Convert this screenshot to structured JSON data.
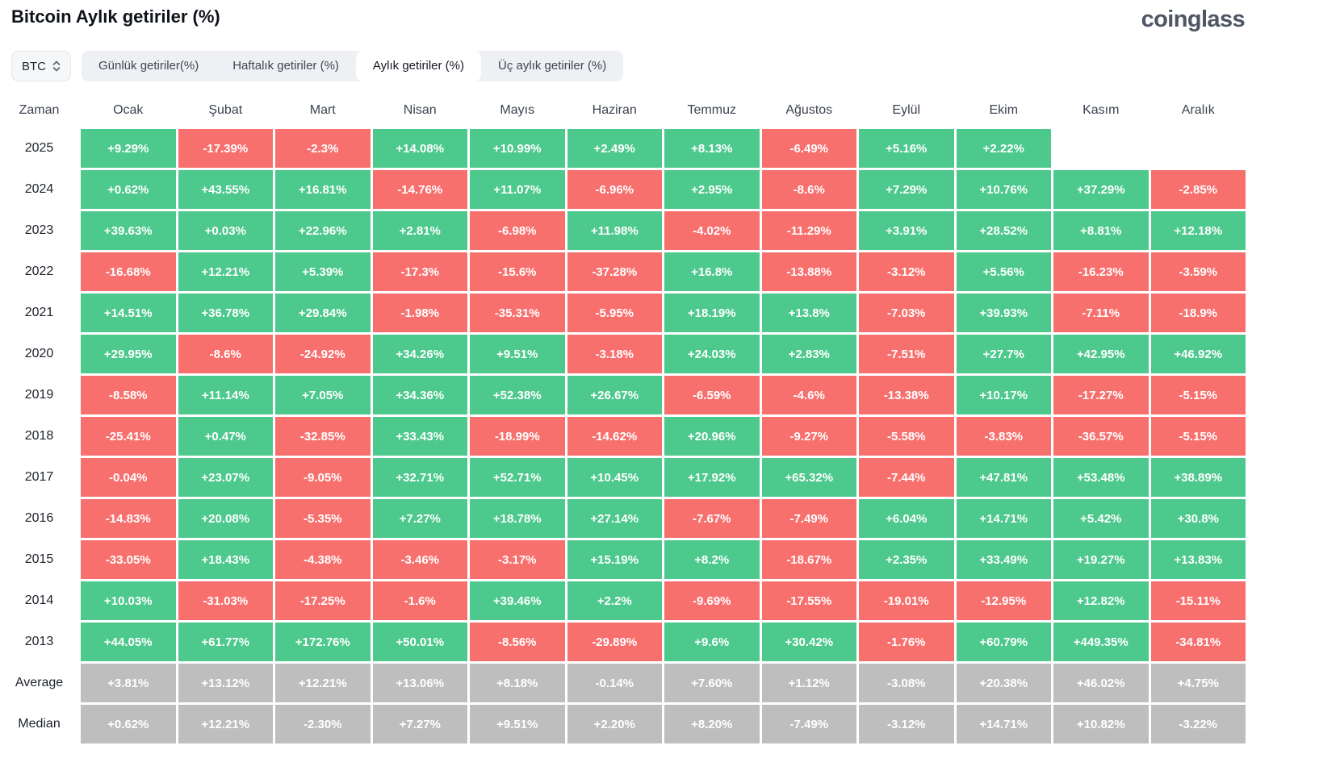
{
  "header": {
    "title": "Bitcoin Aylık getiriler (%)",
    "logo_text": "coinglass"
  },
  "toolbar": {
    "symbol_select": {
      "value": "BTC"
    },
    "tabs": [
      {
        "label": "Günlük getiriler(%)",
        "active": false
      },
      {
        "label": "Haftalık getiriler (%)",
        "active": false
      },
      {
        "label": "Aylık getiriler (%)",
        "active": true
      },
      {
        "label": "Üç aylık getiriler (%)",
        "active": false
      }
    ]
  },
  "colors": {
    "positive": "#4dc98d",
    "negative": "#f7706e",
    "summary": "#bebebe",
    "tab_bar_bg": "#eef0f3",
    "active_tab_bg": "#ffffff"
  },
  "chart_data": {
    "type": "heatmap",
    "title": "Bitcoin Aylık getiriler (%)",
    "legend_position": "none",
    "grid": false,
    "columns": [
      "Zaman",
      "Ocak",
      "Şubat",
      "Mart",
      "Nisan",
      "Mayıs",
      "Haziran",
      "Temmuz",
      "Ağustos",
      "Eylül",
      "Ekim",
      "Kasım",
      "Aralık"
    ],
    "rows": [
      {
        "label": "2025",
        "kind": "year",
        "values": [
          "+9.29%",
          "-17.39%",
          "-2.3%",
          "+14.08%",
          "+10.99%",
          "+2.49%",
          "+8.13%",
          "-6.49%",
          "+5.16%",
          "+2.22%",
          null,
          null
        ]
      },
      {
        "label": "2024",
        "kind": "year",
        "values": [
          "+0.62%",
          "+43.55%",
          "+16.81%",
          "-14.76%",
          "+11.07%",
          "-6.96%",
          "+2.95%",
          "-8.6%",
          "+7.29%",
          "+10.76%",
          "+37.29%",
          "-2.85%"
        ]
      },
      {
        "label": "2023",
        "kind": "year",
        "values": [
          "+39.63%",
          "+0.03%",
          "+22.96%",
          "+2.81%",
          "-6.98%",
          "+11.98%",
          "-4.02%",
          "-11.29%",
          "+3.91%",
          "+28.52%",
          "+8.81%",
          "+12.18%"
        ]
      },
      {
        "label": "2022",
        "kind": "year",
        "values": [
          "-16.68%",
          "+12.21%",
          "+5.39%",
          "-17.3%",
          "-15.6%",
          "-37.28%",
          "+16.8%",
          "-13.88%",
          "-3.12%",
          "+5.56%",
          "-16.23%",
          "-3.59%"
        ]
      },
      {
        "label": "2021",
        "kind": "year",
        "values": [
          "+14.51%",
          "+36.78%",
          "+29.84%",
          "-1.98%",
          "-35.31%",
          "-5.95%",
          "+18.19%",
          "+13.8%",
          "-7.03%",
          "+39.93%",
          "-7.11%",
          "-18.9%"
        ]
      },
      {
        "label": "2020",
        "kind": "year",
        "values": [
          "+29.95%",
          "-8.6%",
          "-24.92%",
          "+34.26%",
          "+9.51%",
          "-3.18%",
          "+24.03%",
          "+2.83%",
          "-7.51%",
          "+27.7%",
          "+42.95%",
          "+46.92%"
        ]
      },
      {
        "label": "2019",
        "kind": "year",
        "values": [
          "-8.58%",
          "+11.14%",
          "+7.05%",
          "+34.36%",
          "+52.38%",
          "+26.67%",
          "-6.59%",
          "-4.6%",
          "-13.38%",
          "+10.17%",
          "-17.27%",
          "-5.15%"
        ]
      },
      {
        "label": "2018",
        "kind": "year",
        "values": [
          "-25.41%",
          "+0.47%",
          "-32.85%",
          "+33.43%",
          "-18.99%",
          "-14.62%",
          "+20.96%",
          "-9.27%",
          "-5.58%",
          "-3.83%",
          "-36.57%",
          "-5.15%"
        ]
      },
      {
        "label": "2017",
        "kind": "year",
        "values": [
          "-0.04%",
          "+23.07%",
          "-9.05%",
          "+32.71%",
          "+52.71%",
          "+10.45%",
          "+17.92%",
          "+65.32%",
          "-7.44%",
          "+47.81%",
          "+53.48%",
          "+38.89%"
        ]
      },
      {
        "label": "2016",
        "kind": "year",
        "values": [
          "-14.83%",
          "+20.08%",
          "-5.35%",
          "+7.27%",
          "+18.78%",
          "+27.14%",
          "-7.67%",
          "-7.49%",
          "+6.04%",
          "+14.71%",
          "+5.42%",
          "+30.8%"
        ]
      },
      {
        "label": "2015",
        "kind": "year",
        "values": [
          "-33.05%",
          "+18.43%",
          "-4.38%",
          "-3.46%",
          "-3.17%",
          "+15.19%",
          "+8.2%",
          "-18.67%",
          "+2.35%",
          "+33.49%",
          "+19.27%",
          "+13.83%"
        ]
      },
      {
        "label": "2014",
        "kind": "year",
        "values": [
          "+10.03%",
          "-31.03%",
          "-17.25%",
          "-1.6%",
          "+39.46%",
          "+2.2%",
          "-9.69%",
          "-17.55%",
          "-19.01%",
          "-12.95%",
          "+12.82%",
          "-15.11%"
        ]
      },
      {
        "label": "2013",
        "kind": "year",
        "values": [
          "+44.05%",
          "+61.77%",
          "+172.76%",
          "+50.01%",
          "-8.56%",
          "-29.89%",
          "+9.6%",
          "+30.42%",
          "-1.76%",
          "+60.79%",
          "+449.35%",
          "-34.81%"
        ]
      },
      {
        "label": "Average",
        "kind": "summary",
        "values": [
          "+3.81%",
          "+13.12%",
          "+12.21%",
          "+13.06%",
          "+8.18%",
          "-0.14%",
          "+7.60%",
          "+1.12%",
          "-3.08%",
          "+20.38%",
          "+46.02%",
          "+4.75%"
        ]
      },
      {
        "label": "Median",
        "kind": "summary",
        "values": [
          "+0.62%",
          "+12.21%",
          "-2.30%",
          "+7.27%",
          "+9.51%",
          "+2.20%",
          "+8.20%",
          "-7.49%",
          "-3.12%",
          "+14.71%",
          "+10.82%",
          "-3.22%"
        ]
      }
    ]
  }
}
